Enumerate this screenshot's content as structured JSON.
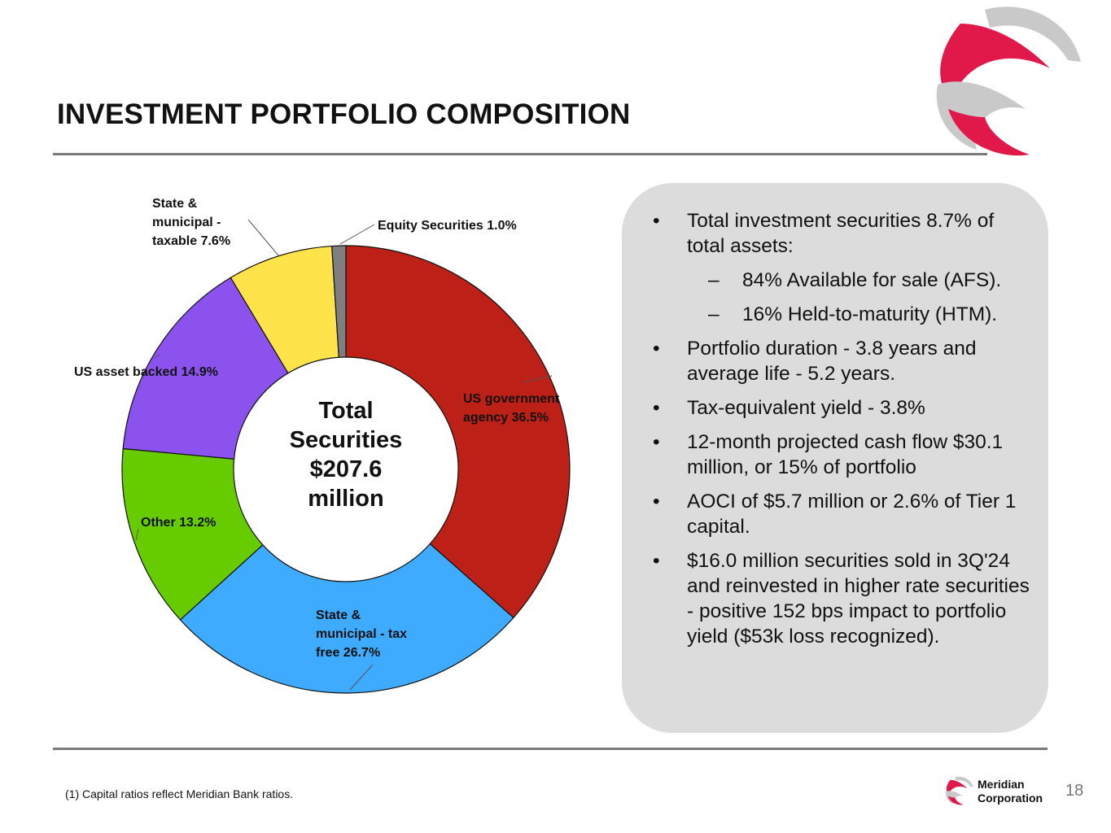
{
  "slide": {
    "title": "INVESTMENT PORTFOLIO COMPOSITION",
    "footnote": "(1) Capital ratios reflect Meridian Bank ratios.",
    "page_number": "18",
    "logo": {
      "line1": "Meridian",
      "line2": "Corporation"
    }
  },
  "colors": {
    "us_gov": "#bd2017",
    "state_free": "#3fabfe",
    "other": "#66cc00",
    "asset_backed": "#8c52ee",
    "state_taxable": "#ffe34a",
    "equity": "#7f7f7f",
    "accent_red": "#e0194a",
    "accent_gray": "#b3b3b3"
  },
  "chart_data": {
    "type": "pie",
    "style": "donut",
    "title": "",
    "center_label": [
      "Total",
      "Securities",
      "$207.6",
      "million"
    ],
    "categories": [
      "US government agency",
      "State & municipal - tax free",
      "Other",
      "US asset backed",
      "State & municipal - taxable",
      "Equity Securities"
    ],
    "values": [
      36.5,
      26.7,
      13.2,
      14.9,
      7.6,
      1.0
    ],
    "unit": "%",
    "labels": [
      [
        "US government",
        "agency 36.5%"
      ],
      [
        "State &",
        "municipal - tax",
        "free 26.7%"
      ],
      [
        "Other 13.2%"
      ],
      [
        "US asset backed 14.9%"
      ],
      [
        "State &",
        "municipal -",
        "taxable 7.6%"
      ],
      [
        "Equity Securities 1.0%"
      ]
    ]
  },
  "panel": {
    "bullets": [
      {
        "text": "Total investment securities 8.7% of total assets:",
        "sub": [
          "84% Available for sale (AFS).",
          "16% Held-to-maturity (HTM)."
        ]
      },
      {
        "text": "Portfolio duration - 3.8 years and average life - 5.2 years.",
        "sub": []
      },
      {
        "text": "Tax-equivalent yield - 3.8%",
        "sub": []
      },
      {
        "text": "12-month projected cash flow $30.1 million, or 15% of portfolio",
        "sub": []
      },
      {
        "text": "AOCI of $5.7 million or 2.6% of Tier 1 capital.",
        "sub": []
      },
      {
        "text": "$16.0 million securities sold in 3Q'24 and reinvested in higher rate securities - positive 152 bps impact to portfolio yield ($53k loss recognized).",
        "sub": []
      }
    ],
    "bullet_glyph": "•",
    "dash_glyph": "–"
  }
}
